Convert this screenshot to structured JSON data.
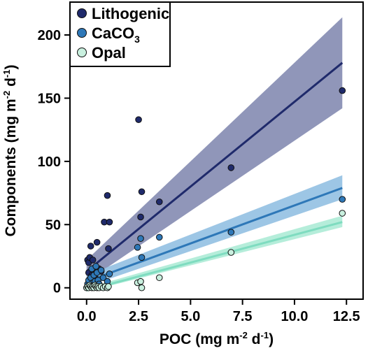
{
  "chart_data": {
    "type": "scatter",
    "xlabel": "POC (mg m⁻² d⁻¹)",
    "ylabel": "Components (mg m⁻² d⁻¹)",
    "xlabel_parts": {
      "pre": "POC (mg m",
      "sup1": "-2",
      "mid": " d",
      "sup2": "-1",
      "post": ")"
    },
    "ylabel_parts": {
      "pre": "Components (mg m",
      "sup1": "-2",
      "mid": " d",
      "sup2": "-1",
      "post": ")"
    },
    "xlim": [
      -0.8,
      13.3
    ],
    "ylim": [
      -9,
      226
    ],
    "x_ticks": [
      0.0,
      2.5,
      5.0,
      7.5,
      10.0,
      12.5
    ],
    "x_tick_labels": [
      "0.0",
      "2.5",
      "5.0",
      "7.5",
      "10.0",
      "12.5"
    ],
    "y_ticks": [
      0,
      50,
      100,
      150,
      200
    ],
    "y_tick_labels": [
      "0",
      "50",
      "100",
      "150",
      "200"
    ],
    "grid": false,
    "legend_placement": "top-left",
    "series": [
      {
        "name": "Lithogenic",
        "label_main": "Lithogenic",
        "label_sub": "",
        "color": "#1f2a6b",
        "band_color": "#7d84ad",
        "line_color": "#1f2a6b",
        "fit_x": [
          0,
          12.3
        ],
        "fit_y": [
          13,
          178
        ],
        "ci_lower": [
          5,
          142
        ],
        "ci_upper": [
          22,
          214
        ],
        "points": [
          {
            "x": 0.05,
            "y": 22
          },
          {
            "x": 0.1,
            "y": 20
          },
          {
            "x": 0.15,
            "y": 24
          },
          {
            "x": 0.2,
            "y": 33
          },
          {
            "x": 0.3,
            "y": 22
          },
          {
            "x": 0.35,
            "y": 15
          },
          {
            "x": 0.45,
            "y": 14
          },
          {
            "x": 0.5,
            "y": 13
          },
          {
            "x": 0.5,
            "y": 36
          },
          {
            "x": 0.6,
            "y": 15
          },
          {
            "x": 0.7,
            "y": 13
          },
          {
            "x": 0.85,
            "y": 52
          },
          {
            "x": 1.0,
            "y": 73
          },
          {
            "x": 1.1,
            "y": 52
          },
          {
            "x": 1.05,
            "y": 31
          },
          {
            "x": 2.5,
            "y": 133
          },
          {
            "x": 2.65,
            "y": 76
          },
          {
            "x": 2.6,
            "y": 56
          },
          {
            "x": 3.5,
            "y": 68
          },
          {
            "x": 6.95,
            "y": 95
          },
          {
            "x": 12.3,
            "y": 156
          },
          {
            "x": 0.1,
            "y": 12
          },
          {
            "x": 0.25,
            "y": 10
          },
          {
            "x": 0.4,
            "y": 8
          }
        ]
      },
      {
        "name": "CaCO3",
        "label_main": "CaCO",
        "label_sub": "3",
        "color": "#2e78b8",
        "band_color": "#8cbce0",
        "line_color": "#2e78b8",
        "fit_x": [
          0,
          12.3
        ],
        "fit_y": [
          5,
          79
        ],
        "ci_lower": [
          1,
          70
        ],
        "ci_upper": [
          10,
          89
        ],
        "points": [
          {
            "x": 0.05,
            "y": 3
          },
          {
            "x": 0.1,
            "y": 6
          },
          {
            "x": 0.15,
            "y": 2
          },
          {
            "x": 0.2,
            "y": 8
          },
          {
            "x": 0.3,
            "y": 4
          },
          {
            "x": 0.35,
            "y": 10
          },
          {
            "x": 0.4,
            "y": 5
          },
          {
            "x": 0.5,
            "y": 12
          },
          {
            "x": 0.55,
            "y": 6
          },
          {
            "x": 0.6,
            "y": 3
          },
          {
            "x": 0.7,
            "y": 14
          },
          {
            "x": 0.8,
            "y": 8
          },
          {
            "x": 1.0,
            "y": 5
          },
          {
            "x": 1.1,
            "y": 11
          },
          {
            "x": 2.45,
            "y": 32
          },
          {
            "x": 2.6,
            "y": 39
          },
          {
            "x": 2.65,
            "y": 24
          },
          {
            "x": 3.5,
            "y": 40
          },
          {
            "x": 6.95,
            "y": 44
          },
          {
            "x": 12.3,
            "y": 70
          },
          {
            "x": 0.25,
            "y": 15
          },
          {
            "x": 0.45,
            "y": 17
          }
        ]
      },
      {
        "name": "Opal",
        "label_main": "Opal",
        "label_sub": "",
        "color": "#c9f0df",
        "band_color": "#a8ead4",
        "line_color": "#7fdcc0",
        "fit_x": [
          0,
          12.3
        ],
        "fit_y": [
          -2,
          52
        ],
        "ci_lower": [
          -3,
          48
        ],
        "ci_upper": [
          0,
          57
        ],
        "points": [
          {
            "x": 0.0,
            "y": 0
          },
          {
            "x": 0.05,
            "y": 1
          },
          {
            "x": 0.1,
            "y": 0
          },
          {
            "x": 0.15,
            "y": 2
          },
          {
            "x": 0.2,
            "y": 1
          },
          {
            "x": 0.25,
            "y": 0
          },
          {
            "x": 0.3,
            "y": 1
          },
          {
            "x": 0.35,
            "y": 0
          },
          {
            "x": 0.4,
            "y": 2
          },
          {
            "x": 0.45,
            "y": 1
          },
          {
            "x": 0.5,
            "y": 0
          },
          {
            "x": 0.55,
            "y": 1
          },
          {
            "x": 0.6,
            "y": 0
          },
          {
            "x": 0.7,
            "y": 1
          },
          {
            "x": 0.8,
            "y": 0
          },
          {
            "x": 0.9,
            "y": 1
          },
          {
            "x": 1.0,
            "y": 0
          },
          {
            "x": 1.05,
            "y": 1
          },
          {
            "x": 2.45,
            "y": 4
          },
          {
            "x": 2.6,
            "y": 5
          },
          {
            "x": 2.65,
            "y": 0
          },
          {
            "x": 3.5,
            "y": 8
          },
          {
            "x": 6.95,
            "y": 28
          },
          {
            "x": 12.3,
            "y": 59
          }
        ]
      }
    ]
  }
}
